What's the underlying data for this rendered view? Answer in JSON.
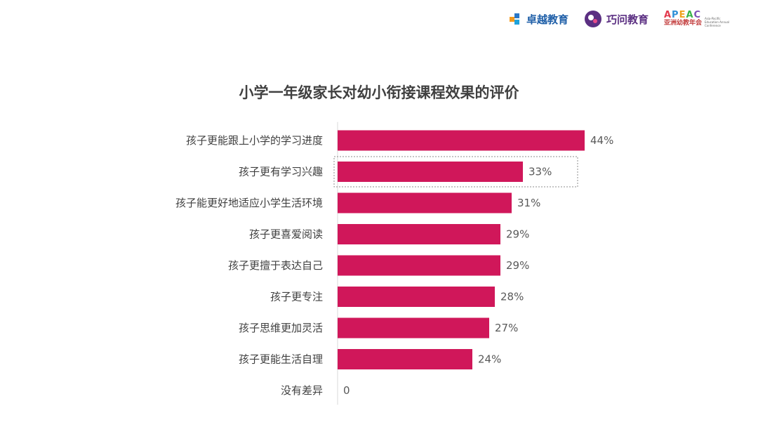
{
  "logos": {
    "zhuoyue": "卓越教育",
    "qiaowen": "巧问教育",
    "apeac_mark": [
      "A",
      "P",
      "E",
      "A",
      "C"
    ],
    "apeac_sub": "亚洲幼教年会",
    "apeac_side": "Asia-Pacific Education Annual Conference"
  },
  "colors": {
    "bar": "#d0175a",
    "axis": "#d9d9d9",
    "selection": "#8c8c8c"
  },
  "chart_data": {
    "type": "bar",
    "orientation": "horizontal",
    "title": "小学一年级家长对幼小衔接课程效果的评价",
    "categories": [
      "孩子更能跟上小学的学习进度",
      "孩子更有学习兴趣",
      "孩子能更好地适应小学生活环境",
      "孩子更喜爱阅读",
      "孩子更擅于表达自己",
      "孩子更专注",
      "孩子思维更加灵活",
      "孩子更能生活自理",
      "没有差异"
    ],
    "values": [
      44,
      33,
      31,
      29,
      29,
      28,
      27,
      24,
      0
    ],
    "value_labels": [
      "44%",
      "33%",
      "31%",
      "29%",
      "29%",
      "28%",
      "27%",
      "24%",
      "0"
    ],
    "selected_index": 1,
    "xlim": [
      0,
      50
    ],
    "grid": false,
    "legend": "none"
  }
}
